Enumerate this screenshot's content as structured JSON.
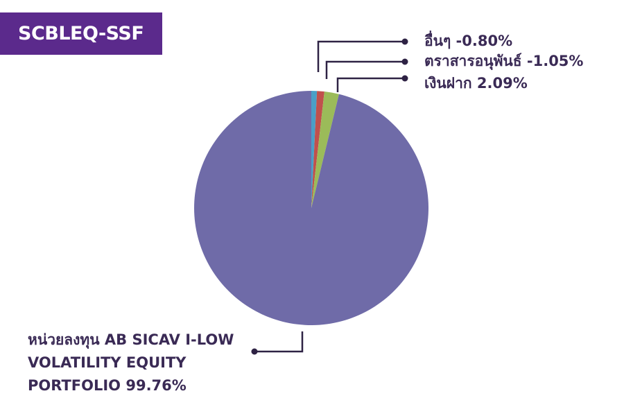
{
  "fund_badge": "SCBLEQ-SSF",
  "colors": {
    "badge_bg": "#5b2a8c",
    "leader_line": "#2e2244",
    "label_text": "#3a2a55"
  },
  "chart_data": {
    "type": "pie",
    "title": "SCBLEQ-SSF",
    "slices": [
      {
        "label": "อื่นๆ -0.80%",
        "value": 0.8,
        "color": "#4a9fc7"
      },
      {
        "label": "ตราสารอนุพันธ์ -1.05%",
        "value": 1.05,
        "color": "#c0504d"
      },
      {
        "label": "เงินฝาก 2.09%",
        "value": 2.09,
        "color": "#9bbb59"
      },
      {
        "label": "หน่วยลงทุน AB SICAV I-LOW VOLATILITY EQUITY PORTFOLIO 99.76%",
        "value": 99.76,
        "color": "#6f6ba8"
      }
    ]
  }
}
